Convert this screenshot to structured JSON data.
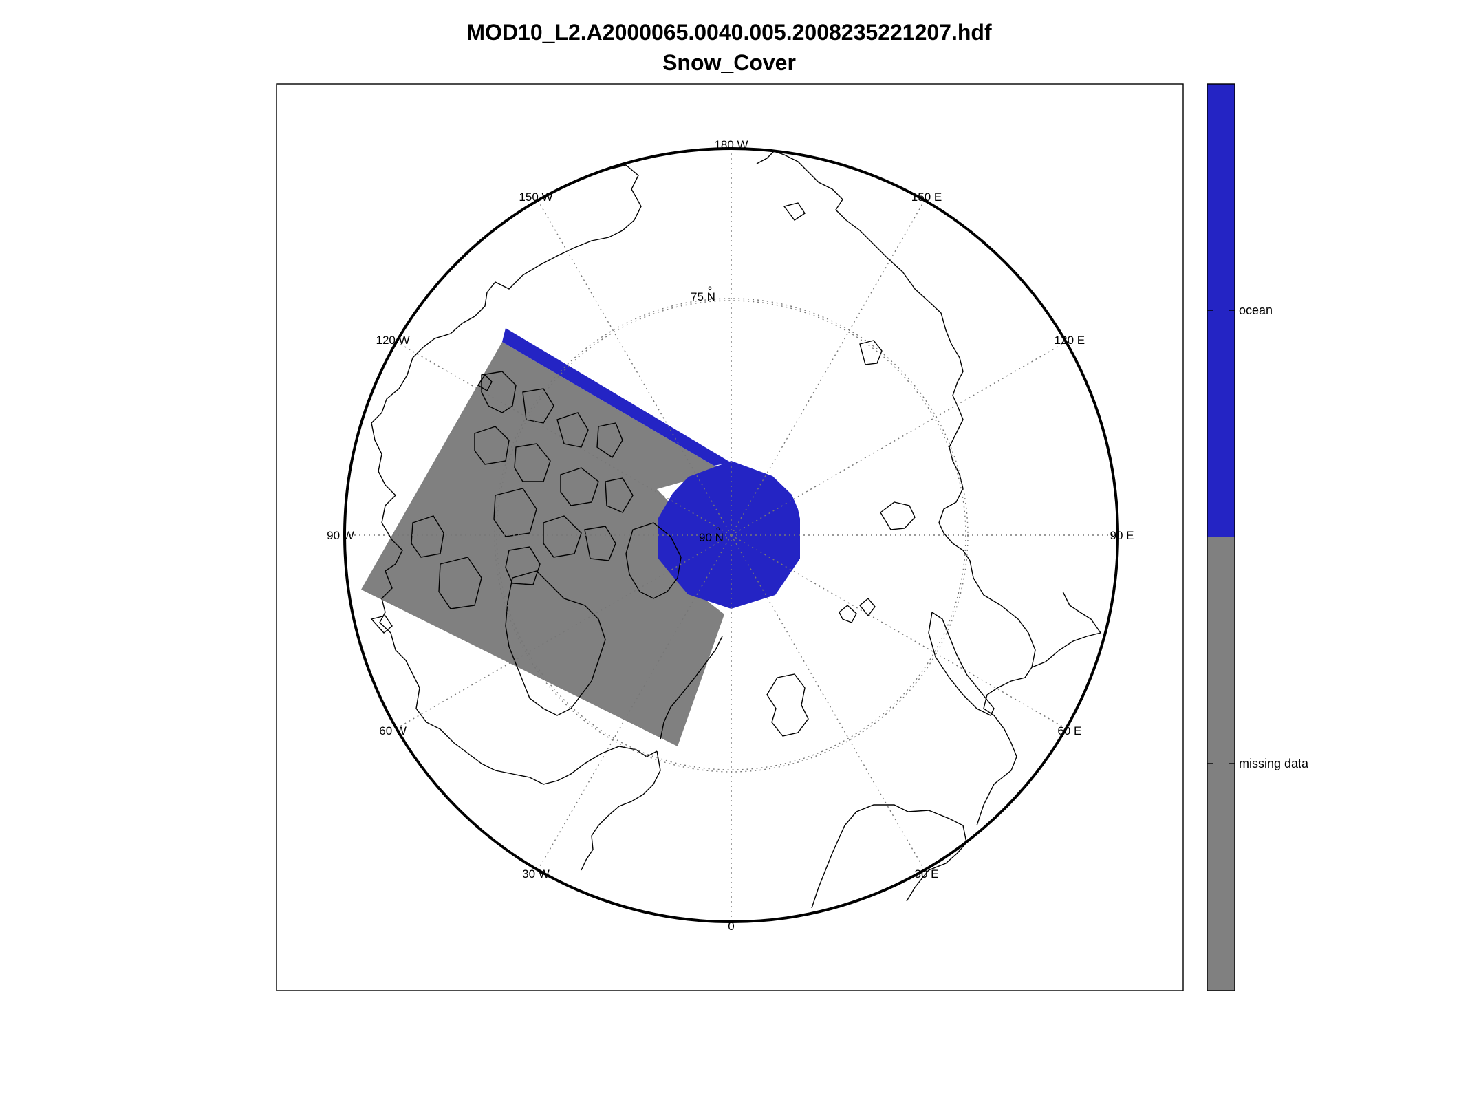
{
  "figure": {
    "title_line1": "MOD10_L2.A2000065.0040.005.2008235221207.hdf",
    "title_line2": "Snow_Cover"
  },
  "map": {
    "projection": "north polar stereographic",
    "center": "90° N",
    "center_label": "90 N",
    "latitude_circle_label": "75 N",
    "longitude_labels": [
      {
        "lon": 180,
        "text": "180 W"
      },
      {
        "lon": -150,
        "text": "150 W"
      },
      {
        "lon": -120,
        "text": "120 W"
      },
      {
        "lon": -90,
        "text": "90 W"
      },
      {
        "lon": -60,
        "text": "60 W"
      },
      {
        "lon": -30,
        "text": "30 W"
      },
      {
        "lon": 0,
        "text": "0"
      },
      {
        "lon": 30,
        "text": "30 E"
      },
      {
        "lon": 60,
        "text": "60 E"
      },
      {
        "lon": 90,
        "text": "90 E"
      },
      {
        "lon": 120,
        "text": "120 E"
      },
      {
        "lon": 150,
        "text": "150 E"
      }
    ],
    "colors": {
      "ocean": "#2424c4",
      "missing_data": "#808080",
      "coastline": "#000000",
      "grid": "#777777"
    }
  },
  "colorbar": {
    "categories": [
      {
        "label": "ocean",
        "color": "#2424c4"
      },
      {
        "label": "missing data",
        "color": "#808080"
      }
    ]
  }
}
